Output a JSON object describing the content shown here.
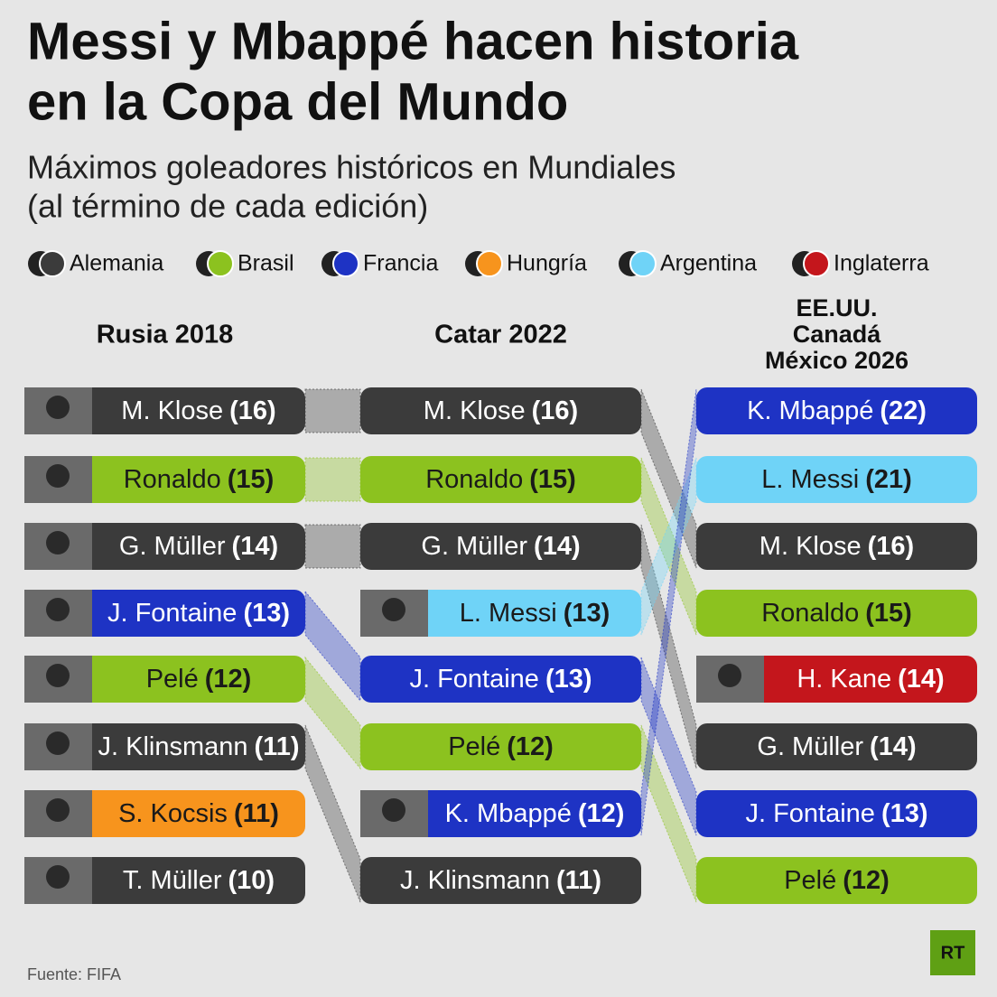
{
  "header": {
    "title": [
      "Messi y Mbappé hacen historia",
      "en la Copa del Mundo"
    ],
    "subtitle": [
      "Máximos goleadores históricos en Mundiales",
      "(al término de cada edición)"
    ]
  },
  "legend": [
    {
      "name": "Alemania",
      "color": "#3b3b3b"
    },
    {
      "name": "Brasil",
      "color": "#8cc21f"
    },
    {
      "name": "Francia",
      "color": "#1e33c4"
    },
    {
      "name": "Hungría",
      "color": "#f7941d"
    },
    {
      "name": "Argentina",
      "color": "#6fd3f7"
    },
    {
      "name": "Inglaterra",
      "color": "#c4161c"
    }
  ],
  "columns": [
    {
      "title": [
        "Rusia 2018"
      ],
      "entries": [
        {
          "name": "M. Klose",
          "goals": "(16)",
          "country": "Alemania"
        },
        {
          "name": "Ronaldo",
          "goals": "(15)",
          "country": "Brasil"
        },
        {
          "name": "G. Müller",
          "goals": "(14)",
          "country": "Alemania"
        },
        {
          "name": "J. Fontaine",
          "goals": "(13)",
          "country": "Francia"
        },
        {
          "name": "Pelé",
          "goals": "(12)",
          "country": "Brasil"
        },
        {
          "name": "J. Klinsmann",
          "goals": "(11)",
          "country": "Alemania"
        },
        {
          "name": "S. Kocsis",
          "goals": "(11)",
          "country": "Hungría"
        },
        {
          "name": "T. Müller",
          "goals": "(10)",
          "country": "Alemania"
        }
      ]
    },
    {
      "title": [
        "Catar 2022"
      ],
      "entries": [
        {
          "name": "M. Klose",
          "goals": "(16)",
          "country": "Alemania"
        },
        {
          "name": "Ronaldo",
          "goals": "(15)",
          "country": "Brasil"
        },
        {
          "name": "G. Müller",
          "goals": "(14)",
          "country": "Alemania"
        },
        {
          "name": "L. Messi",
          "goals": "(13)",
          "country": "Argentina"
        },
        {
          "name": "J. Fontaine",
          "goals": "(13)",
          "country": "Francia"
        },
        {
          "name": "Pelé",
          "goals": "(12)",
          "country": "Brasil"
        },
        {
          "name": "K. Mbappé",
          "goals": "(12)",
          "country": "Francia"
        },
        {
          "name": "J. Klinsmann",
          "goals": "(11)",
          "country": "Alemania"
        }
      ]
    },
    {
      "title": [
        "EE.UU.",
        "Canadá",
        "México 2026"
      ],
      "entries": [
        {
          "name": "K. Mbappé",
          "goals": "(22)",
          "country": "Francia"
        },
        {
          "name": "L. Messi",
          "goals": "(21)",
          "country": "Argentina"
        },
        {
          "name": "M. Klose",
          "goals": "(16)",
          "country": "Alemania"
        },
        {
          "name": "Ronaldo",
          "goals": "(15)",
          "country": "Brasil"
        },
        {
          "name": "H. Kane",
          "goals": "(14)",
          "country": "Inglaterra"
        },
        {
          "name": "G. Müller",
          "goals": "(14)",
          "country": "Alemania"
        },
        {
          "name": "J. Fontaine",
          "goals": "(13)",
          "country": "Francia"
        },
        {
          "name": "Pelé",
          "goals": "(12)",
          "country": "Brasil"
        }
      ]
    }
  ],
  "footer": {
    "source": "Fuente: FIFA",
    "logo": "RT"
  }
}
